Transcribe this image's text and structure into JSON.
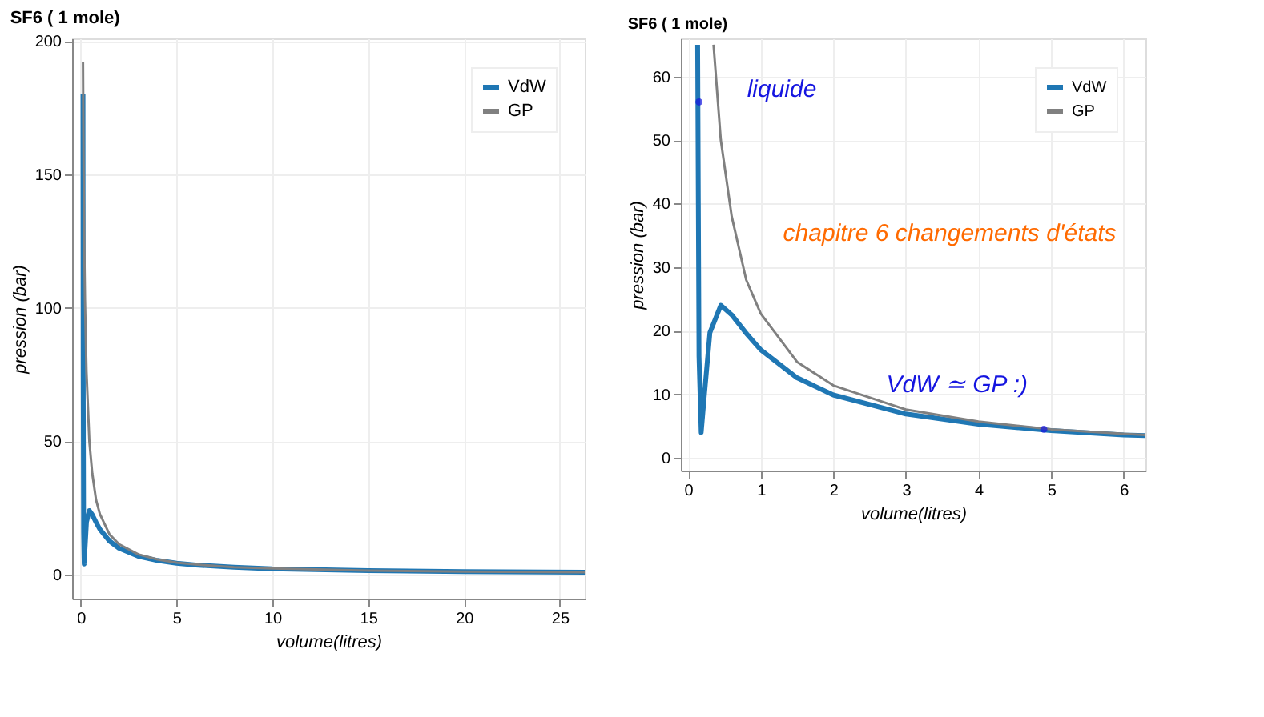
{
  "chart_data": [
    {
      "type": "line",
      "title": "SF6 ( 1 mole)",
      "xlabel": "volume(litres)",
      "ylabel": "pression (bar)",
      "xlim": [
        -0.45,
        26.3
      ],
      "ylim": [
        -9,
        201
      ],
      "xticks": [
        0,
        5,
        10,
        15,
        20,
        25
      ],
      "yticks": [
        0,
        50,
        100,
        150,
        200
      ],
      "grid": true,
      "legend": "top right",
      "series": [
        {
          "name": "VdW",
          "color": "#1f77b4",
          "x": [
            0.118,
            0.13,
            0.15,
            0.18,
            0.22,
            0.3,
            0.45,
            0.6,
            0.8,
            1,
            1.5,
            2,
            3,
            4,
            5,
            6,
            8,
            10,
            15,
            20,
            26.3
          ],
          "values": [
            180,
            74,
            16,
            4,
            9.4,
            19.7,
            24,
            22.5,
            19.6,
            17,
            12.6,
            9.9,
            6.9,
            5.3,
            4.3,
            3.6,
            2.8,
            2.2,
            1.5,
            1.1,
            0.9
          ]
        },
        {
          "name": "GP",
          "color": "#808080",
          "x": [
            0.118,
            0.13,
            0.15,
            0.18,
            0.22,
            0.3,
            0.45,
            0.6,
            0.8,
            1,
            1.5,
            2,
            3,
            4,
            5,
            6,
            8,
            10,
            15,
            20,
            26.3
          ],
          "values": [
            192,
            175,
            151,
            126,
            103,
            76,
            50,
            38,
            28,
            22.7,
            15.1,
            11.4,
            7.6,
            5.7,
            4.5,
            3.8,
            2.8,
            2.3,
            1.5,
            1.1,
            0.9
          ]
        }
      ]
    },
    {
      "type": "line",
      "title": "SF6 ( 1 mole)",
      "xlabel": "volume(litres)",
      "ylabel": "pression (bar)",
      "xlim": [
        -0.1,
        6.3
      ],
      "ylim": [
        -2,
        66
      ],
      "xticks": [
        0,
        1,
        2,
        3,
        4,
        5,
        6
      ],
      "yticks": [
        0,
        10,
        20,
        30,
        40,
        50,
        60
      ],
      "grid": true,
      "legend": "top right",
      "series": [
        {
          "name": "VdW",
          "color": "#1f77b4",
          "x": [
            0.131,
            0.15,
            0.18,
            0.22,
            0.3,
            0.45,
            0.6,
            0.8,
            1,
            1.5,
            2,
            3,
            4,
            5,
            6,
            6.3
          ],
          "values": [
            65,
            16,
            4,
            9.4,
            19.7,
            24,
            22.5,
            19.6,
            17,
            12.6,
            9.9,
            6.9,
            5.3,
            4.3,
            3.6,
            3.5
          ]
        },
        {
          "name": "GP",
          "color": "#808080",
          "x": [
            0.35,
            0.45,
            0.6,
            0.8,
            1,
            1.5,
            2,
            3,
            4,
            5,
            6,
            6.3
          ],
          "values": [
            65,
            50,
            38,
            28,
            22.7,
            15.1,
            11.4,
            7.6,
            5.7,
            4.5,
            3.8,
            3.6
          ]
        }
      ],
      "annotations": [
        {
          "text": "liquide",
          "x": 0.15,
          "y": 56
        },
        "chapitre 6 changements d'états",
        {
          "text": "VdW ≃ GP :)",
          "x": 4.9,
          "y": 4.5
        }
      ]
    }
  ]
}
